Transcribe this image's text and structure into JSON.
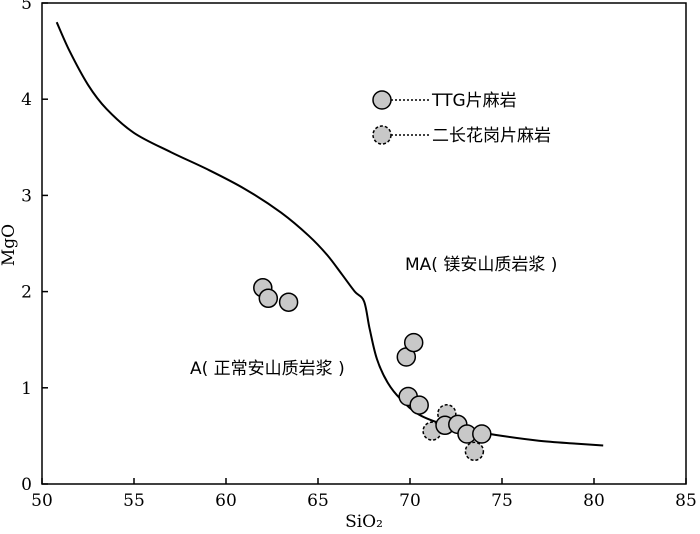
{
  "chart_data": {
    "type": "scatter",
    "xlabel": "SiO₂",
    "ylabel": "MgO",
    "xlim": [
      50,
      85
    ],
    "ylim": [
      0,
      5
    ],
    "x_ticks": [
      "50",
      "55",
      "60",
      "65",
      "70",
      "75",
      "80",
      "85"
    ],
    "y_ticks": [
      "0",
      "1",
      "2",
      "3",
      "4",
      "5"
    ],
    "grid": false,
    "legend_position": "top-right",
    "series": [
      {
        "name": "TTG片麻岩",
        "marker": "circle-solid",
        "color": "#c8c8c8",
        "x": [
          62.0,
          62.3,
          63.4,
          69.8,
          70.2,
          69.9,
          70.5,
          71.9,
          72.6,
          73.1,
          73.9
        ],
        "y": [
          2.04,
          1.93,
          1.89,
          1.32,
          1.47,
          0.91,
          0.82,
          0.61,
          0.62,
          0.52,
          0.52
        ]
      },
      {
        "name": "二长花岗片麻岩",
        "marker": "circle-dashed",
        "color": "#c8c8c8",
        "x": [
          71.2,
          72.0,
          73.5
        ],
        "y": [
          0.55,
          0.73,
          0.34
        ]
      }
    ],
    "boundary_line": {
      "x": [
        50.8,
        51.5,
        52.5,
        53.5,
        55.0,
        57.0,
        59.0,
        61.0,
        63.0,
        64.5,
        65.5,
        66.3,
        67.0,
        67.5,
        67.8,
        68.2,
        68.8,
        69.5,
        70.5,
        72.0,
        73.5,
        75.0,
        77.0,
        79.0,
        80.5
      ],
      "y": [
        4.8,
        4.5,
        4.15,
        3.9,
        3.65,
        3.45,
        3.27,
        3.07,
        2.82,
        2.58,
        2.38,
        2.18,
        2.0,
        1.9,
        1.62,
        1.3,
        1.05,
        0.88,
        0.72,
        0.61,
        0.55,
        0.5,
        0.45,
        0.42,
        0.4
      ]
    },
    "annotations": {
      "ma": "MA( 镁安山质岩浆 )",
      "a": "A( 正常安山质岩浆 )"
    }
  }
}
